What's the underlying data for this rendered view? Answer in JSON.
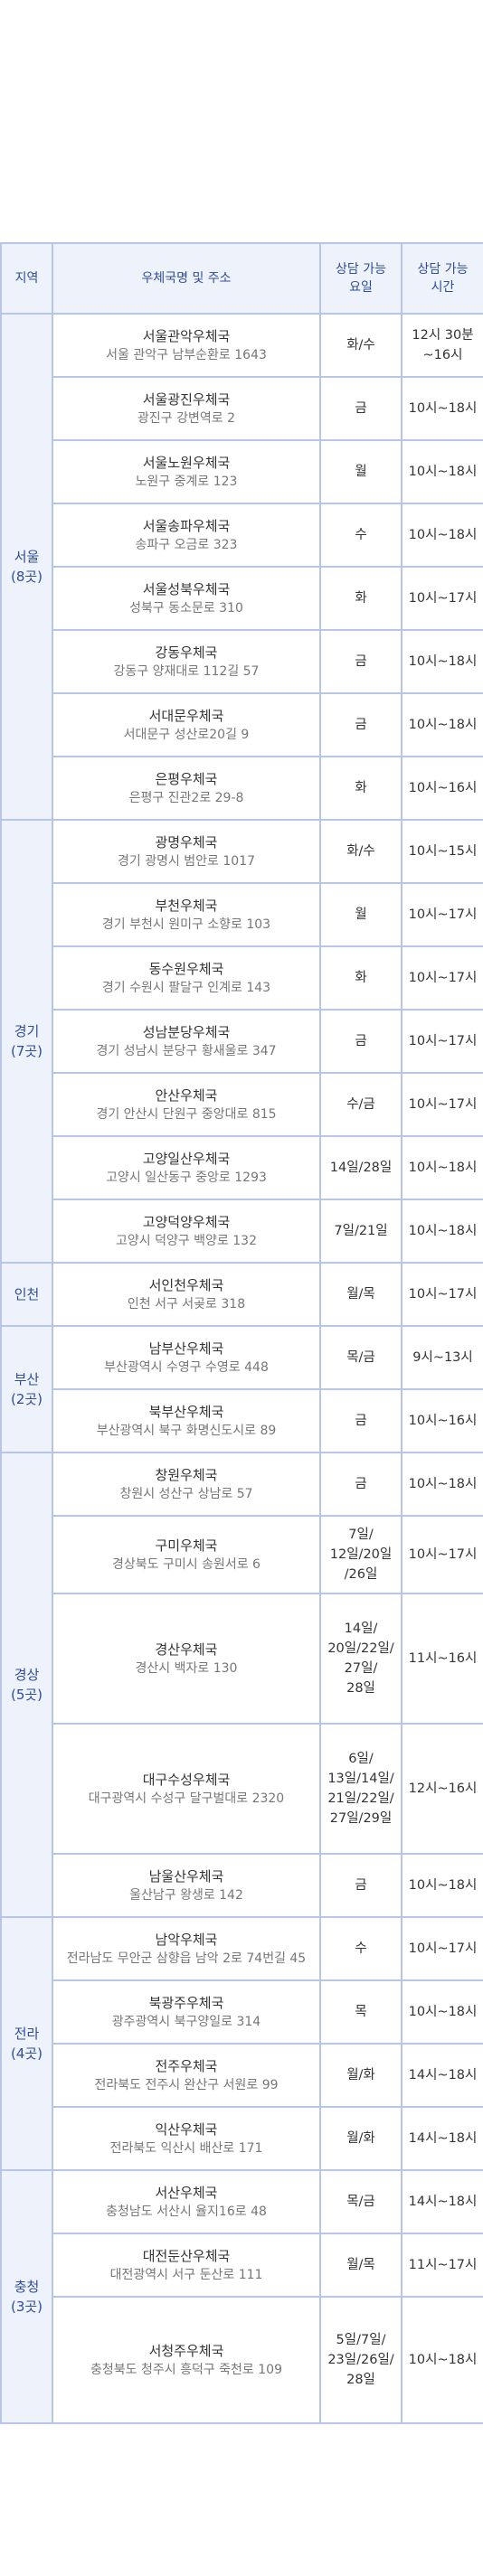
{
  "header": {
    "region": "지역",
    "office": "우체국명 및 주소",
    "day": "상담 가능\n요일",
    "time": "상담 가능\n시간"
  },
  "groups": [
    {
      "region": "서울\n(8곳)",
      "rows": [
        {
          "name": "서울관악우체국",
          "addr": "서울 관악구 남부순환로 1643",
          "day": "화/수",
          "time": "12시 30분\n~16시"
        },
        {
          "name": "서울광진우체국",
          "addr": "광진구 강변역로 2",
          "day": "금",
          "time": "10시~18시"
        },
        {
          "name": "서울노원우체국",
          "addr": "노원구 중계로 123",
          "day": "월",
          "time": "10시~18시"
        },
        {
          "name": "서울송파우체국",
          "addr": "송파구 오금로 323",
          "day": "수",
          "time": "10시~18시"
        },
        {
          "name": "서울성북우체국",
          "addr": "성북구 동소문로 310",
          "day": "화",
          "time": "10시~17시"
        },
        {
          "name": "강동우체국",
          "addr": "강동구 양재대로 112길 57",
          "day": "금",
          "time": "10시~18시"
        },
        {
          "name": "서대문우체국",
          "addr": "서대문구 성산로20길 9",
          "day": "금",
          "time": "10시~18시"
        },
        {
          "name": "은평우체국",
          "addr": "은평구 진관2로 29-8",
          "day": "화",
          "time": "10시~16시"
        }
      ]
    },
    {
      "region": "경기\n(7곳)",
      "rows": [
        {
          "name": "광명우체국",
          "addr": "경기 광명시 범안로 1017",
          "day": "화/수",
          "time": "10시~15시"
        },
        {
          "name": "부천우체국",
          "addr": "경기 부천시 원미구 소향로 103",
          "day": "월",
          "time": "10시~17시"
        },
        {
          "name": "동수원우체국",
          "addr": "경기 수원시 팔달구 인계로 143",
          "day": "화",
          "time": "10시~17시"
        },
        {
          "name": "성남분당우체국",
          "addr": "경기 성남시 분당구 황새울로 347",
          "day": "금",
          "time": "10시~17시"
        },
        {
          "name": "안산우체국",
          "addr": "경기 안산시 단원구 중앙대로 815",
          "day": "수/금",
          "time": "10시~17시"
        },
        {
          "name": "고양일산우체국",
          "addr": "고양시 일산동구 중앙로 1293",
          "day": "14일/28일",
          "time": "10시~18시"
        },
        {
          "name": "고양덕양우체국",
          "addr": "고양시 덕양구 백양로 132",
          "day": "7일/21일",
          "time": "10시~18시"
        }
      ]
    },
    {
      "region": "인천",
      "rows": [
        {
          "name": "서인천우체국",
          "addr": "인천 서구 서곶로 318",
          "day": "월/목",
          "time": "10시~17시"
        }
      ]
    },
    {
      "region": "부산\n(2곳)",
      "rows": [
        {
          "name": "남부산우체국",
          "addr": "부산광역시 수영구 수영로 448",
          "day": "목/금",
          "time": "9시~13시"
        },
        {
          "name": "북부산우체국",
          "addr": "부산광역시 북구 화명신도시로 89",
          "day": "금",
          "time": "10시~16시"
        }
      ]
    },
    {
      "region": "경상\n(5곳)",
      "rows": [
        {
          "name": "창원우체국",
          "addr": "창원시 성산구 상남로 57",
          "day": "금",
          "time": "10시~18시"
        },
        {
          "name": "구미우체국",
          "addr": "경상북도 구미시 송원서로 6",
          "day": "7일/\n12일/20일\n/26일",
          "time": "10시~17시"
        },
        {
          "name": "경산우체국",
          "addr": "경산시 백자로 130",
          "day": "14일/\n20일/22일/\n27일/\n28일",
          "time": "11시~16시"
        },
        {
          "name": "대구수성우체국",
          "addr": "대구광역시 수성구 달구벌대로 2320",
          "day": "6일/\n13일/14일/\n21일/22일/\n27일/29일",
          "time": "12시~16시"
        },
        {
          "name": "남울산우체국",
          "addr": "울산남구 왕생로 142",
          "day": "금",
          "time": "10시~18시"
        }
      ]
    },
    {
      "region": "전라\n(4곳)",
      "rows": [
        {
          "name": "남악우체국",
          "addr": "전라남도 무안군 삼향읍 남악 2로 74번길 45",
          "day": "수",
          "time": "10시~17시"
        },
        {
          "name": "북광주우체국",
          "addr": "광주광역시 북구양일로 314",
          "day": "목",
          "time": "10시~18시"
        },
        {
          "name": "전주우체국",
          "addr": "전라북도 전주시 완산구 서원로 99",
          "day": "월/화",
          "time": "14시~18시"
        },
        {
          "name": "익산우체국",
          "addr": "전라북도 익산시 배산로 171",
          "day": "월/화",
          "time": "14시~18시"
        }
      ]
    },
    {
      "region": "충청\n(3곳)",
      "rows": [
        {
          "name": "서산우체국",
          "addr": "충청남도 서산시 율지16로 48",
          "day": "목/금",
          "time": "14시~18시"
        },
        {
          "name": "대전둔산우체국",
          "addr": "대전광역시 서구 둔산로 111",
          "day": "월/목",
          "time": "11시~17시"
        },
        {
          "name": "서청주우체국",
          "addr": "충청북도 청주시 흥덕구 죽천로 109",
          "day": "5일/7일/\n23일/26일/\n28일",
          "time": "10시~18시"
        }
      ]
    }
  ]
}
